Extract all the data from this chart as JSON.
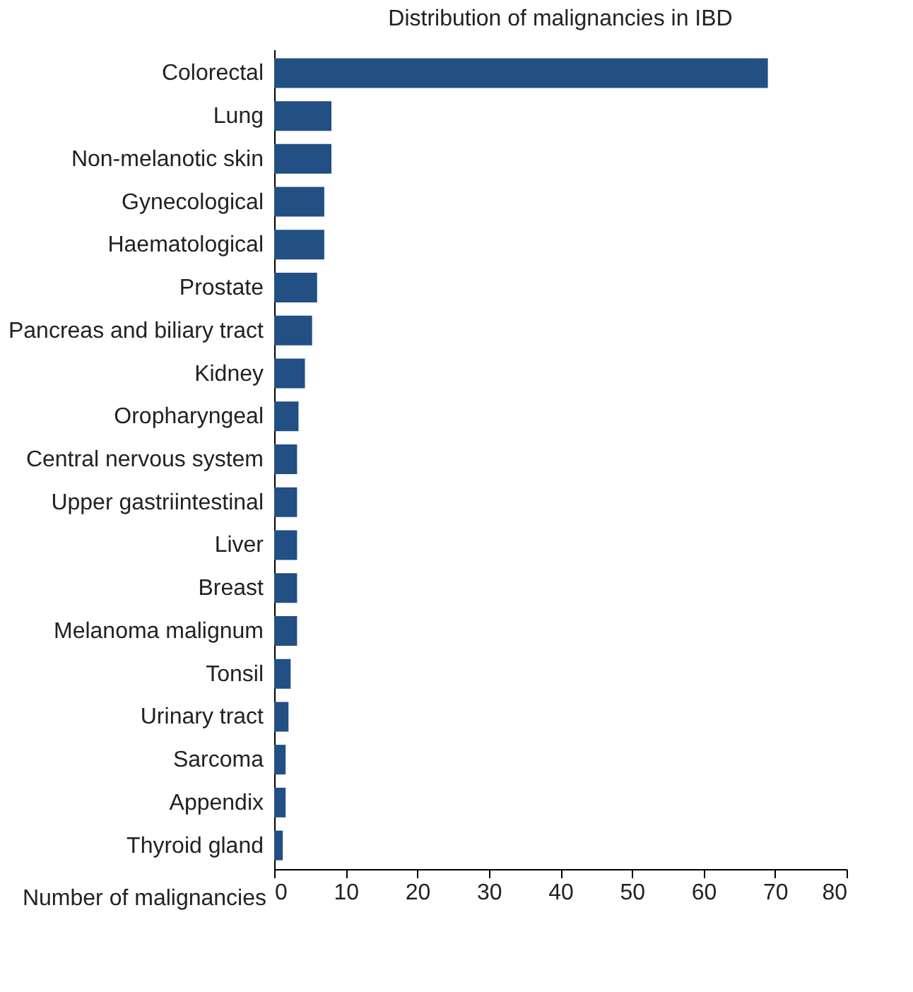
{
  "chart_data": {
    "type": "bar",
    "orientation": "horizontal",
    "title": "Distribution of malignancies in IBD",
    "xlabel": "Number of malignancies",
    "categories": [
      "Colorectal",
      "Lung",
      "Non-melanotic skin",
      "Gynecological",
      "Haematological",
      "Prostate",
      "Pancreas and biliary tract",
      "Kidney",
      "Oropharyngeal",
      "Central nervous system",
      "Upper gastriintestinal",
      "Liver",
      "Breast",
      "Melanoma malignum",
      "Tonsil",
      "Urinary tract",
      "Sarcoma",
      "Appendix",
      "Thyroid gland"
    ],
    "values": [
      69,
      8,
      8,
      7,
      7,
      6,
      5.3,
      4.3,
      3.4,
      3.2,
      3.2,
      3.2,
      3.2,
      3.2,
      2.3,
      2,
      1.6,
      1.6,
      1.2
    ],
    "color": "#224f84",
    "xlim": [
      0,
      80
    ],
    "xticks": [
      0,
      10,
      20,
      30,
      40,
      50,
      60,
      70,
      80
    ],
    "grid": false
  }
}
